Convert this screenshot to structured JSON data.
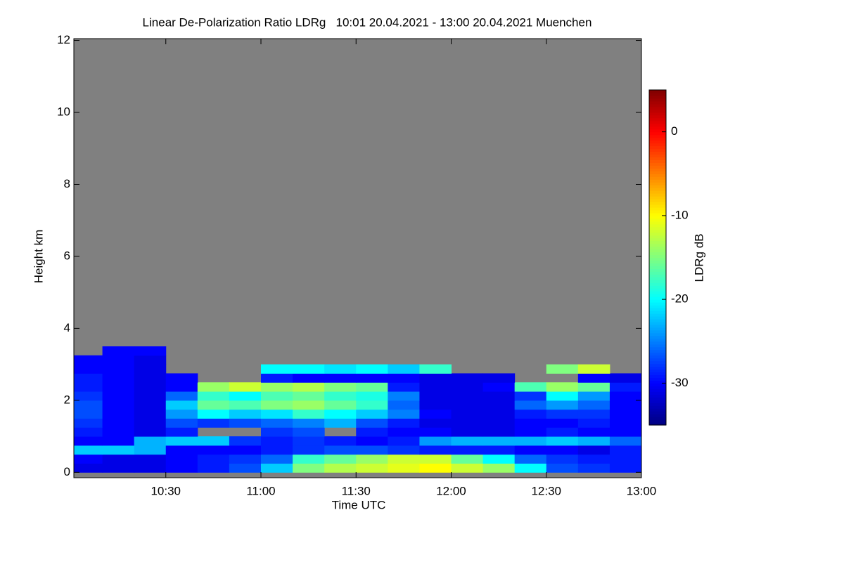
{
  "chart_data": {
    "type": "heatmap",
    "title": "Linear De-Polarization Ratio LDRg   10:01 20.04.2021 - 13:00 20.04.2021 Muenchen",
    "x_label": "Time UTC",
    "y_label": "Height km",
    "xlim": [
      601,
      780
    ],
    "xticks": [
      {
        "value": 630,
        "label": "10:30"
      },
      {
        "value": 660,
        "label": "11:00"
      },
      {
        "value": 690,
        "label": "11:30"
      },
      {
        "value": 720,
        "label": "12:00"
      },
      {
        "value": 750,
        "label": "12:30"
      },
      {
        "value": 780,
        "label": "13:00"
      }
    ],
    "ylim": [
      -0.15,
      12.05
    ],
    "yticks": [
      0,
      2,
      4,
      6,
      8,
      10,
      12
    ],
    "nodata_color": "#808080",
    "colormap": "jet",
    "x": [
      605,
      615,
      625,
      635,
      645,
      655,
      665,
      675,
      685,
      695,
      705,
      715,
      725,
      735,
      745,
      755,
      765,
      775
    ],
    "y": [
      0.125,
      0.375,
      0.625,
      0.875,
      1.125,
      1.375,
      1.625,
      1.875,
      2.125,
      2.375,
      2.625,
      2.875,
      3.125,
      3.375
    ],
    "z": [
      [
        -31,
        -31,
        -31,
        -30,
        -29,
        -27,
        -22,
        -15,
        -13,
        -12,
        -11,
        -10,
        -12,
        -14,
        -20,
        -27,
        -28,
        -29
      ],
      [
        -30,
        -31,
        -31,
        -30,
        -29,
        -28,
        -26,
        -18,
        -16,
        -14,
        -12,
        -12,
        -16,
        -20,
        -26,
        -28,
        -29,
        -29
      ],
      [
        -22,
        -22,
        -23,
        -30,
        -30,
        -30,
        -29,
        -28,
        -27,
        -27,
        -28,
        -29,
        -29,
        -29,
        -30,
        -30,
        -31,
        -29
      ],
      [
        -30,
        -30,
        -23,
        -22,
        -22,
        -28,
        -29,
        -28,
        -29,
        -30,
        -29,
        -24,
        -23,
        -23,
        -23,
        -22,
        -23,
        -26
      ],
      [
        -29,
        -30,
        -31,
        -29,
        null,
        null,
        -28,
        -27,
        null,
        -29,
        -30,
        -30,
        -31,
        -31,
        -30,
        -29,
        -30,
        -30
      ],
      [
        -28,
        -30,
        -31,
        -27,
        -28,
        -27,
        -26,
        -25,
        -23,
        -27,
        -29,
        -31,
        -31,
        -31,
        -30,
        -30,
        -29,
        -30
      ],
      [
        -27,
        -30,
        -31,
        -24,
        -20,
        -22,
        -21,
        -18,
        -20,
        -22,
        -25,
        -30,
        -31,
        -31,
        -29,
        -28,
        -28,
        -30
      ],
      [
        -27,
        -30,
        -31,
        -22,
        -16,
        -17,
        -15,
        -14,
        -16,
        -18,
        -26,
        -31,
        -31,
        -31,
        -26,
        -24,
        -26,
        -30
      ],
      [
        -28,
        -30,
        -31,
        -26,
        -18,
        -20,
        -17,
        -16,
        -18,
        -19,
        -25,
        -31,
        -31,
        -31,
        -28,
        -20,
        -24,
        -30
      ],
      [
        -29,
        -30,
        -31,
        -30,
        -14,
        -12,
        -14,
        -13,
        -15,
        -16,
        -29,
        -31,
        -31,
        -30,
        -17,
        -14,
        -16,
        -29
      ],
      [
        -29,
        -30,
        -31,
        -30,
        null,
        null,
        -29,
        -30,
        -30,
        -30,
        -30,
        -31,
        -31,
        -31,
        null,
        null,
        -30,
        -31
      ],
      [
        -30,
        -30,
        -31,
        null,
        null,
        null,
        -20,
        -20,
        -21,
        -20,
        -22,
        -18,
        null,
        null,
        null,
        -15,
        -12,
        null
      ],
      [
        -30,
        -30,
        -31,
        null,
        null,
        null,
        null,
        null,
        null,
        null,
        null,
        null,
        null,
        null,
        null,
        null,
        null,
        null
      ],
      [
        null,
        -30,
        -30,
        null,
        null,
        null,
        null,
        null,
        null,
        null,
        null,
        null,
        null,
        null,
        null,
        null,
        null,
        null
      ]
    ],
    "colorbar": {
      "label": "LDRg dB",
      "lim": [
        -35,
        5
      ],
      "ticks": [
        0,
        -10,
        -20,
        -30
      ]
    }
  }
}
